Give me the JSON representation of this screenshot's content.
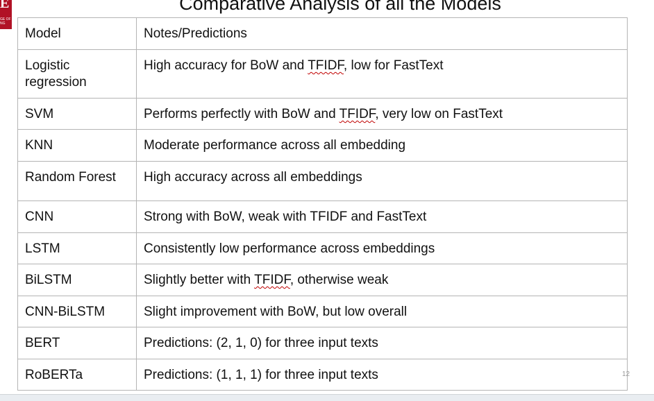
{
  "slide": {
    "title": "Comparative Analysis of all the Models",
    "page_number": "12",
    "logo_text": "GE OF\nNG"
  },
  "table": {
    "headers": [
      "Model",
      "Notes/Predictions"
    ],
    "rows": [
      {
        "model": "Logistic regression",
        "note_pre": "High accuracy for BoW and ",
        "note_mark": "TFIDF",
        "note_post": ", low for FastText"
      },
      {
        "model": "SVM",
        "note_pre": "Performs perfectly with BoW and ",
        "note_mark": "TFIDF",
        "note_post": ", very low on FastText"
      },
      {
        "model": "KNN",
        "note_pre": "Moderate performance across all embedding",
        "note_mark": "",
        "note_post": ""
      },
      {
        "model": "Random Forest",
        "note_pre": "High accuracy across all embeddings",
        "note_mark": "",
        "note_post": ""
      },
      {
        "model": "CNN",
        "note_pre": "Strong with BoW, weak with TFIDF and FastText",
        "note_mark": "",
        "note_post": ""
      },
      {
        "model": "LSTM",
        "note_pre": "Consistently low performance across embeddings",
        "note_mark": "",
        "note_post": ""
      },
      {
        "model": "BiLSTM",
        "note_pre": "Slightly better with ",
        "note_mark": "TFIDF",
        "note_post": ", otherwise weak"
      },
      {
        "model": "CNN-BiLSTM",
        "note_pre": "Slight improvement with BoW, but low overall",
        "note_mark": "",
        "note_post": ""
      },
      {
        "model": "BERT",
        "note_pre": "Predictions: (2, 1, 0) for three input texts",
        "note_mark": "",
        "note_post": ""
      },
      {
        "model": "RoBERTa",
        "note_pre": "Predictions: (1, 1, 1) for three input texts",
        "note_mark": "",
        "note_post": ""
      }
    ]
  }
}
